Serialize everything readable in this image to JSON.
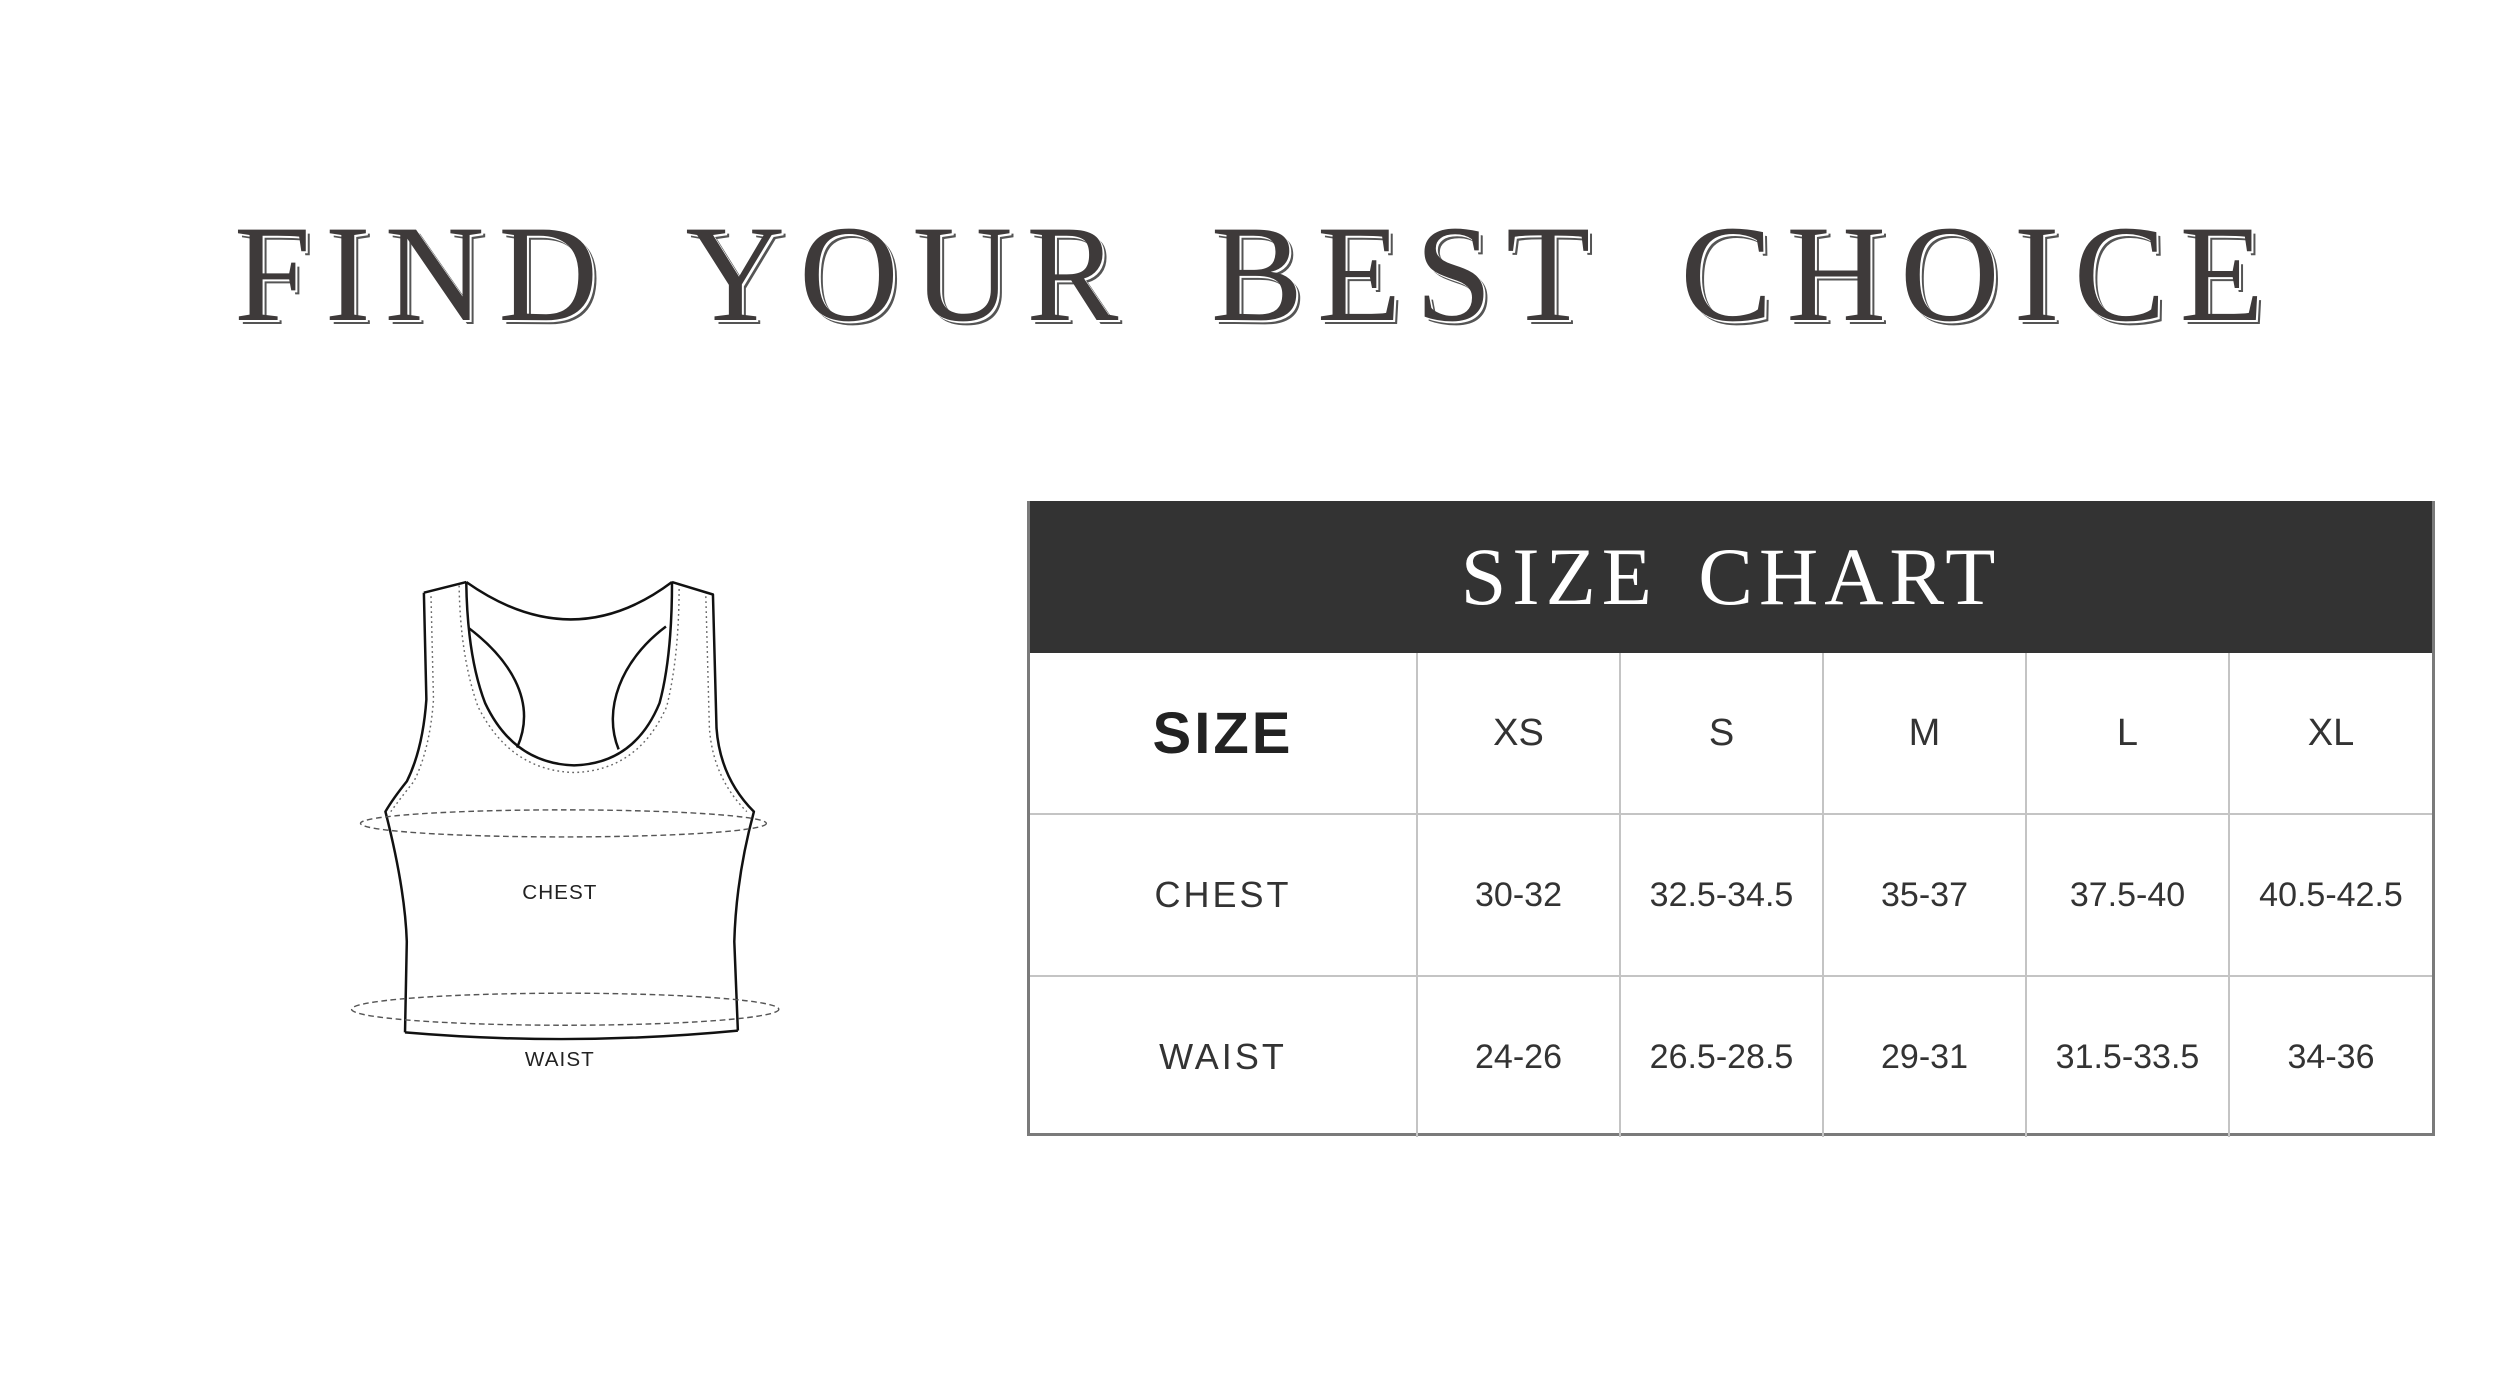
{
  "title": "FIND YOUR BEST CHOICE",
  "garment": {
    "chest_label": "CHEST",
    "waist_label": "WAIST"
  },
  "size_chart": {
    "title": "SIZE CHART",
    "header": {
      "label": "SIZE",
      "sizes": [
        "XS",
        "S",
        "M",
        "L",
        "XL"
      ]
    },
    "rows": [
      {
        "label": "CHEST",
        "values": [
          "30-32",
          "32.5-34.5",
          "35-37",
          "37.5-40",
          "40.5-42.5"
        ]
      },
      {
        "label": "WAIST",
        "values": [
          "24-26",
          "26.5-28.5",
          "29-31",
          "31.5-33.5",
          "34-36"
        ]
      }
    ]
  },
  "colors": {
    "header_bg": "#333333",
    "text": "#333333",
    "grid": "#c4c4c4"
  }
}
